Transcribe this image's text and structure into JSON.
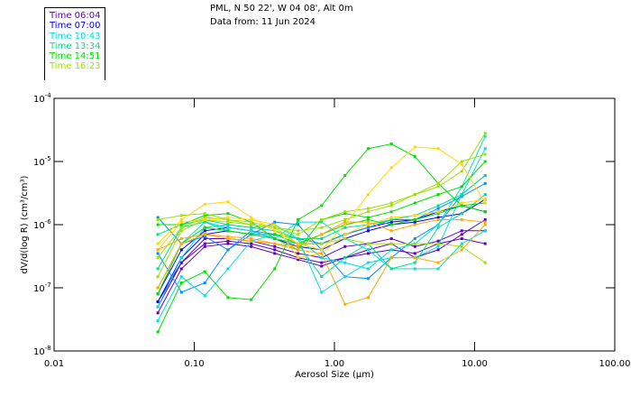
{
  "header": {
    "location": "PML, N 50 22', W 04 08', Alt 0m",
    "date_line": "Data from: 11 Jun 2024"
  },
  "legend": [
    {
      "label": "Time 06:04",
      "color": "#6000c0"
    },
    {
      "label": "Time 07:00",
      "color": "#0000ff"
    },
    {
      "label": "Time 10:43",
      "color": "#00e0e0"
    },
    {
      "label": "Time 13:34",
      "color": "#00e090"
    },
    {
      "label": "Time 14:51",
      "color": "#00e000"
    },
    {
      "label": "Time 16:23",
      "color": "#a0e000"
    }
  ],
  "chart_data": {
    "type": "line",
    "title": "",
    "xlabel": "Aerosol Size (µm)",
    "ylabel": "dV/d(log R) (cm³/cm³)",
    "xscale": "log",
    "yscale": "log",
    "xlim": [
      0.01,
      100
    ],
    "ylim": [
      1e-08,
      0.0001
    ],
    "xticks": [
      {
        "v": 0.01,
        "label": "0.01"
      },
      {
        "v": 0.1,
        "label": "0.10"
      },
      {
        "v": 1,
        "label": "1.00"
      },
      {
        "v": 10,
        "label": "10.00"
      },
      {
        "v": 100,
        "label": "100.00"
      }
    ],
    "yticks": [
      {
        "v": 0.0001,
        "exp": "-4"
      },
      {
        "v": 1e-05,
        "exp": "-5"
      },
      {
        "v": 1e-06,
        "exp": "-6"
      },
      {
        "v": 1e-07,
        "exp": "-7"
      },
      {
        "v": 1e-08,
        "exp": "-8"
      }
    ],
    "ytick_base": "10",
    "grid": false,
    "x": [
      0.055,
      0.081,
      0.119,
      0.174,
      0.255,
      0.375,
      0.55,
      0.81,
      1.19,
      1.74,
      2.55,
      3.75,
      5.5,
      8.1,
      11.9
    ],
    "series": [
      {
        "color": "#6000c0",
        "values": [
          5e-08,
          2.5e-07,
          5e-07,
          5.5e-07,
          5e-07,
          4e-07,
          3e-07,
          2.5e-07,
          3e-07,
          3.5e-07,
          4e-07,
          3.5e-07,
          5e-07,
          6e-07,
          5e-07
        ]
      },
      {
        "color": "#6000c0",
        "values": [
          4e-08,
          2e-07,
          4.5e-07,
          5e-07,
          4.5e-07,
          3.5e-07,
          2.8e-07,
          2.2e-07,
          3e-07,
          4e-07,
          5e-07,
          3e-07,
          4e-07,
          7e-07,
          1.2e-06
        ]
      },
      {
        "color": "#6000c0",
        "values": [
          6e-08,
          2.5e-07,
          6e-07,
          6e-07,
          5.5e-07,
          4.5e-07,
          3.5e-07,
          3e-07,
          4.5e-07,
          5e-07,
          6e-07,
          4.5e-07,
          5.5e-07,
          8e-07,
          8e-07
        ]
      },
      {
        "color": "#0000ff",
        "values": [
          6e-08,
          3e-07,
          7e-07,
          8e-07,
          7e-07,
          6e-07,
          4.5e-07,
          4e-07,
          6e-07,
          8e-07,
          1e-06,
          1.1e-06,
          1.3e-06,
          1.5e-06,
          2.5e-06
        ]
      },
      {
        "color": "#0000ff",
        "values": [
          8e-08,
          4e-07,
          8e-07,
          9e-07,
          8e-07,
          6e-07,
          5e-07,
          5e-07,
          7e-07,
          9e-07,
          1.1e-06,
          1.2e-06,
          1.6e-06,
          2e-06,
          1.6e-06
        ]
      },
      {
        "color": "#0090ff",
        "values": [
          3.5e-07,
          8.5e-08,
          1.2e-07,
          4e-07,
          7e-07,
          1.1e-06,
          1e-06,
          4e-07,
          1.5e-07,
          1.4e-07,
          3e-07,
          6e-07,
          1e-06,
          3e-06,
          6e-06
        ]
      },
      {
        "color": "#0090ff",
        "values": [
          1.3e-06,
          5e-07,
          6.5e-07,
          4e-07,
          8e-07,
          7e-07,
          6e-07,
          5e-07,
          7e-07,
          9e-07,
          1.2e-06,
          1.2e-06,
          1.8e-06,
          2.8e-06,
          4.5e-06
        ]
      },
      {
        "color": "#00e0e0",
        "values": [
          3e-08,
          1.5e-07,
          7.5e-08,
          2e-07,
          5.5e-07,
          7e-07,
          6e-07,
          3e-07,
          2.5e-07,
          2e-07,
          4e-07,
          5e-07,
          1e-06,
          4e-06,
          2.5e-05
        ]
      },
      {
        "color": "#00e0e0",
        "values": [
          5e-08,
          3e-07,
          9e-07,
          1e-06,
          9e-07,
          1e-06,
          6e-07,
          8.5e-08,
          1.5e-07,
          2.5e-07,
          3e-07,
          3e-07,
          4.5e-07,
          3e-06,
          1.6e-05
        ]
      },
      {
        "color": "#00e0e0",
        "values": [
          1e-07,
          5e-07,
          1.1e-06,
          9e-07,
          8e-07,
          6e-07,
          1.1e-06,
          1.1e-06,
          6e-07,
          4e-07,
          2e-07,
          2e-07,
          2e-07,
          5e-07,
          8e-07
        ]
      },
      {
        "color": "#00e090",
        "values": [
          2e-07,
          9e-07,
          1.1e-06,
          8e-07,
          7e-07,
          6e-07,
          5e-07,
          1.5e-07,
          3e-07,
          5e-07,
          2e-07,
          2.5e-07,
          9e-07,
          1.5e-06,
          3e-06
        ]
      },
      {
        "color": "#00e090",
        "values": [
          7e-07,
          1e-06,
          1.2e-06,
          1e-06,
          9e-07,
          8e-07,
          6e-07,
          6e-07,
          9e-07,
          1e-06,
          1.2e-06,
          1.4e-06,
          2e-06,
          3e-06,
          6e-06
        ]
      },
      {
        "color": "#00e000",
        "values": [
          2e-08,
          1.2e-07,
          1.8e-07,
          7e-08,
          6.5e-08,
          2e-07,
          1.2e-06,
          2e-06,
          6e-06,
          1.6e-05,
          1.9e-05,
          1.2e-05,
          4.5e-06,
          2e-06,
          1.6e-06
        ]
      },
      {
        "color": "#00e000",
        "values": [
          1e-06,
          1e-06,
          1.4e-06,
          1.5e-06,
          1.1e-06,
          6e-07,
          4e-07,
          1.2e-06,
          1.5e-06,
          1.3e-06,
          1.6e-06,
          2.2e-06,
          3e-06,
          4e-06,
          1e-05
        ]
      },
      {
        "color": "#00e000",
        "values": [
          8e-08,
          5e-07,
          9e-07,
          8e-07,
          7e-07,
          7e-07,
          5e-07,
          7e-07,
          1e-06,
          1.2e-06,
          1e-06,
          1.2e-06,
          1.5e-06,
          2e-06,
          2.2e-06
        ]
      },
      {
        "color": "#a0e000",
        "values": [
          1.2e-06,
          1.4e-06,
          1.5e-06,
          1.2e-06,
          1e-06,
          9e-07,
          8e-07,
          9e-07,
          1.2e-06,
          1.6e-06,
          2e-06,
          3e-06,
          4e-06,
          7e-06,
          2.8e-05
        ]
      },
      {
        "color": "#a0e000",
        "values": [
          3e-07,
          9e-07,
          1.3e-06,
          1.2e-06,
          1.1e-06,
          9e-07,
          5e-07,
          5e-07,
          6e-07,
          5e-07,
          5e-07,
          5e-07,
          5e-07,
          4.5e-07,
          2.5e-07
        ]
      },
      {
        "color": "#a0e000",
        "values": [
          1.5e-07,
          8e-07,
          1.2e-06,
          1.1e-06,
          1e-06,
          9e-07,
          7e-07,
          1.2e-06,
          1.6e-06,
          1.8e-06,
          2.2e-06,
          3e-06,
          4.5e-06,
          1e-05,
          1.3e-05
        ]
      },
      {
        "color": "#ffd800",
        "values": [
          5e-07,
          1.2e-06,
          2.1e-06,
          2.3e-06,
          1.3e-06,
          8e-07,
          5e-07,
          4e-07,
          1e-06,
          3e-06,
          8e-06,
          1.7e-05,
          1.6e-05,
          9e-06,
          2.2e-06
        ]
      },
      {
        "color": "#ffd800",
        "values": [
          4e-07,
          1.1e-06,
          1.2e-06,
          1.3e-06,
          1.2e-06,
          1e-06,
          3e-07,
          3.5e-07,
          7e-07,
          1e-06,
          1.3e-06,
          1.4e-06,
          1.6e-06,
          2.2e-06,
          2.5e-06
        ]
      },
      {
        "color": "#ffa800",
        "values": [
          1e-07,
          5e-07,
          7e-07,
          6e-07,
          5.5e-07,
          5e-07,
          4e-07,
          3.5e-07,
          5.5e-08,
          7e-08,
          3e-07,
          3e-07,
          2.5e-07,
          4e-07,
          1e-06
        ]
      },
      {
        "color": "#ffa800",
        "values": [
          4e-07,
          6e-07,
          7e-07,
          6.5e-07,
          6e-07,
          5e-07,
          4.5e-07,
          7e-07,
          1.1e-06,
          1.1e-06,
          8e-07,
          1e-06,
          1.2e-06,
          1.2e-06,
          1.1e-06
        ]
      }
    ]
  }
}
